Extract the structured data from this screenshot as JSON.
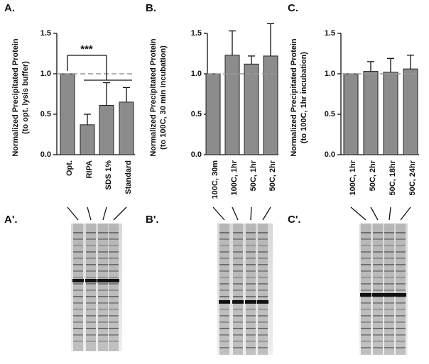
{
  "chart_data": [
    {
      "type": "bar",
      "panel": "A.",
      "y_label": [
        "Normalized Precipitated Protein",
        "(to opt. lysis buffer)"
      ],
      "categories": [
        "Opt.",
        "RIPA",
        "SDS 1%",
        "Standard"
      ],
      "values": [
        1.0,
        0.37,
        0.61,
        0.65
      ],
      "errors": [
        0,
        0.13,
        0.28,
        0.18
      ],
      "color": "#8c8c8c",
      "ylim": [
        0,
        1.5
      ],
      "yticks": [
        {
          "value": 0,
          "label": "0.0"
        },
        0.5,
        {
          "value": 1,
          "label": "1.0"
        },
        1.5
      ],
      "reference_line": 1,
      "annotation": "***"
    },
    {
      "type": "bar",
      "panel": "B.",
      "y_label": [
        "Normalized Precipitated Protein",
        "(to 100C, 30 min incubation)"
      ],
      "categories": [
        "100C, 30m",
        "100C, 1hr",
        "50C, 1hr",
        "50C, 2hr"
      ],
      "values": [
        1.0,
        1.23,
        1.12,
        1.22
      ],
      "errors": [
        0,
        0.3,
        0.1,
        0.4
      ],
      "color": "#8c8c8c",
      "ylim": [
        0,
        1.5
      ],
      "yticks": [
        {
          "value": 0,
          "label": "0.0"
        },
        0.5,
        {
          "value": 1,
          "label": "1.0"
        },
        1.5
      ],
      "reference_line": 1
    },
    {
      "type": "bar",
      "panel": "C.",
      "y_label": [
        "Normalized Precipitated Protein",
        "(to 100C, 1hr incubation)"
      ],
      "categories": [
        "100C, 1hr",
        "50C, 2hr",
        "50C, 18hr",
        "50C, 24hr"
      ],
      "values": [
        1.0,
        1.03,
        1.02,
        1.06
      ],
      "errors": [
        0,
        0.12,
        0.17,
        0.17
      ],
      "color": "#8c8c8c",
      "ylim": [
        0,
        1.5
      ],
      "yticks": [
        {
          "value": 0,
          "label": "0.0"
        },
        0.5,
        {
          "value": 1,
          "label": "1.0"
        },
        1.5
      ],
      "reference_line": 1
    }
  ],
  "gels": [
    {
      "label": "A'."
    },
    {
      "label": "B'."
    },
    {
      "label": "C'."
    }
  ]
}
